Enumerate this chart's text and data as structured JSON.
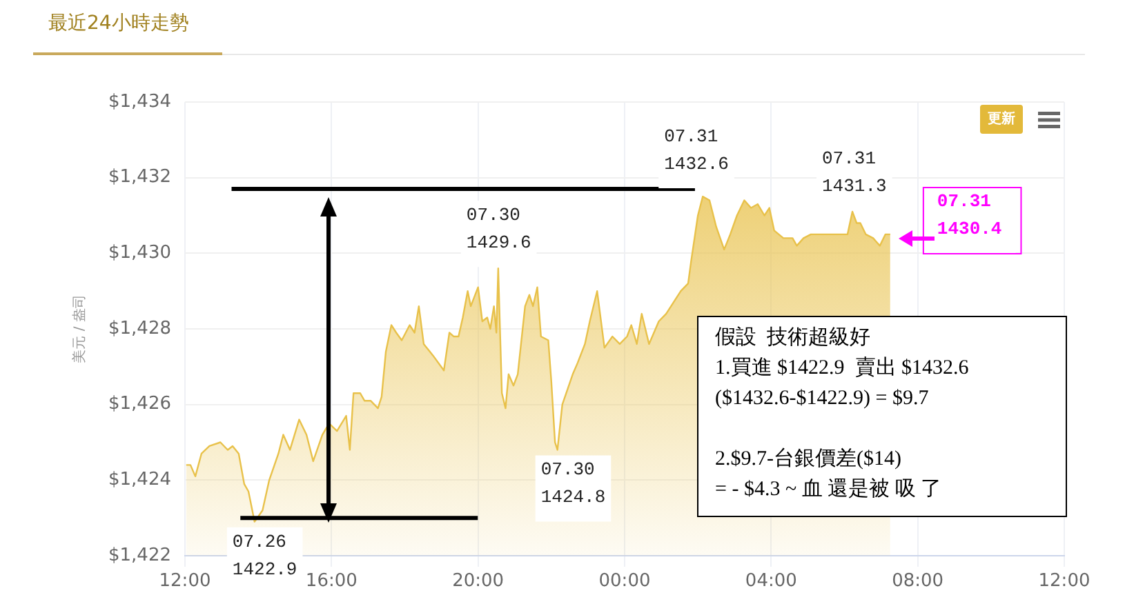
{
  "chart_data": {
    "type": "area",
    "title": "最近24小時走勢",
    "ylabel": "美元 / 盎司",
    "x": [
      "--07-30T12:02",
      "--07-30T12:09",
      "--07-30T12:17",
      "--07-30T12:27",
      "--07-30T12:40",
      "--07-30T12:58",
      "--07-30T13:10",
      "--07-30T13:18",
      "--07-30T13:28",
      "--07-30T13:37",
      "--07-30T13:44",
      "--07-30T13:54",
      "--07-30T14:07",
      "--07-30T14:18",
      "--07-30T14:33",
      "--07-30T14:41",
      "--07-30T14:52",
      "--07-30T15:07",
      "--07-30T15:19",
      "--07-30T15:30",
      "--07-30T15:45",
      "--07-30T15:56",
      "--07-30T16:09",
      "--07-30T16:24",
      "--07-30T16:30",
      "--07-30T16:36",
      "--07-30T16:47",
      "--07-30T16:54",
      "--07-30T17:04",
      "--07-30T17:16",
      "--07-30T17:22",
      "--07-30T17:29",
      "--07-30T17:38",
      "--07-30T17:46",
      "--07-30T17:55",
      "--07-30T18:08",
      "--07-30T18:16",
      "--07-30T18:23",
      "--07-30T18:31",
      "--07-30T18:46",
      "--07-30T19:04",
      "--07-30T19:13",
      "--07-30T19:20",
      "--07-30T19:28",
      "--07-30T19:35",
      "--07-30T19:43",
      "--07-30T19:48",
      "--07-30T20:00",
      "--07-30T20:07",
      "--07-30T20:15",
      "--07-30T20:20",
      "--07-30T20:26",
      "--07-30T20:30",
      "--07-30T20:33",
      "--07-30T20:39",
      "--07-30T20:45",
      "--07-30T20:50",
      "--07-30T20:58",
      "--07-30T21:05",
      "--07-30T21:17",
      "--07-30T21:24",
      "--07-30T21:30",
      "--07-30T21:37",
      "--07-30T21:43",
      "--07-30T21:55",
      "--07-30T22:00",
      "--07-30T22:06",
      "--07-30T22:10",
      "--07-30T22:18",
      "--07-30T22:35",
      "--07-30T22:43",
      "--07-30T22:55",
      "--07-30T23:03",
      "--07-30T23:15",
      "--07-30T23:27",
      "--07-30T23:40",
      "--07-30T23:52",
      "--07-31T00:04",
      "--07-31T00:11",
      "--07-31T00:20",
      "--07-31T00:28",
      "--07-31T00:40",
      "--07-31T00:56",
      "--07-31T01:08",
      "--07-31T01:20",
      "--07-31T01:32",
      "--07-31T01:44",
      "--07-31T01:49",
      "--07-31T02:00",
      "--07-31T02:08",
      "--07-31T02:19",
      "--07-31T02:30",
      "--07-31T02:43",
      "--07-31T02:53",
      "--07-31T03:04",
      "--07-31T03:16",
      "--07-31T03:27",
      "--07-31T03:38",
      "--07-31T03:49",
      "--07-31T03:57",
      "--07-31T04:05",
      "--07-31T04:20",
      "--07-31T04:35",
      "--07-31T04:42",
      "--07-31T04:53",
      "--07-31T05:05",
      "--07-31T06:05",
      "--07-31T06:13",
      "--07-31T06:20",
      "--07-31T06:26",
      "--07-31T06:35",
      "--07-31T06:47",
      "--07-31T06:58",
      "--07-31T07:07",
      "--07-31T07:15"
    ],
    "series": [
      {
        "color": "#e8c14a",
        "values": [
          1424.4,
          1424.4,
          1424.1,
          1424.7,
          1424.9,
          1425.0,
          1424.8,
          1424.9,
          1424.7,
          1423.9,
          1423.7,
          1422.9,
          1423.2,
          1424.0,
          1424.7,
          1425.2,
          1424.8,
          1425.6,
          1425.2,
          1424.5,
          1425.2,
          1425.5,
          1425.3,
          1425.7,
          1424.8,
          1426.3,
          1426.3,
          1426.1,
          1426.1,
          1425.9,
          1426.2,
          1427.4,
          1428.1,
          1427.9,
          1427.7,
          1428.1,
          1427.9,
          1428.6,
          1427.6,
          1427.3,
          1426.9,
          1427.9,
          1427.8,
          1427.8,
          1428.3,
          1429.0,
          1428.6,
          1429.1,
          1428.2,
          1428.3,
          1428.0,
          1428.6,
          1427.9,
          1429.6,
          1426.3,
          1425.9,
          1426.8,
          1426.5,
          1426.8,
          1428.6,
          1428.9,
          1428.6,
          1429.1,
          1427.8,
          1427.7,
          1426.6,
          1425.0,
          1424.8,
          1426.0,
          1426.8,
          1427.1,
          1427.6,
          1428.2,
          1429.0,
          1427.5,
          1427.8,
          1427.6,
          1427.8,
          1428.1,
          1427.6,
          1428.4,
          1427.6,
          1428.2,
          1428.4,
          1428.7,
          1429.0,
          1429.2,
          1429.8,
          1431.0,
          1431.5,
          1431.4,
          1430.7,
          1430.1,
          1430.5,
          1431.0,
          1431.4,
          1431.2,
          1431.3,
          1431.0,
          1431.2,
          1430.6,
          1430.4,
          1430.4,
          1430.2,
          1430.4,
          1430.5,
          1430.5,
          1431.1,
          1430.8,
          1430.8,
          1430.5,
          1430.4,
          1430.2,
          1430.5,
          1430.5
        ]
      }
    ],
    "xlim": [
      "--07-30T12:00",
      "--07-31T12:00"
    ],
    "xticks": [
      {
        "value": "--07-30T12:00",
        "label": "12:00"
      },
      {
        "value": "--07-30T16:00",
        "label": "16:00"
      },
      {
        "value": "--07-30T20:00",
        "label": "20:00"
      },
      {
        "value": "--07-31T00:00",
        "label": "00:00"
      },
      {
        "value": "--07-31T04:00",
        "label": "04:00"
      },
      {
        "value": "--07-31T08:00",
        "label": "08:00"
      },
      {
        "value": "--07-31T12:00",
        "label": "12:00"
      }
    ],
    "ylim": [
      1422,
      1434
    ],
    "yticks": [
      {
        "value": 1422,
        "label": "$1,422"
      },
      {
        "value": 1424,
        "label": "$1,424"
      },
      {
        "value": 1426,
        "label": "$1,426"
      },
      {
        "value": 1428,
        "label": "$1,428"
      },
      {
        "value": 1430,
        "label": "$1,430"
      },
      {
        "value": 1432,
        "label": "$1,432"
      },
      {
        "value": 1434,
        "label": "$1,434"
      }
    ],
    "grid": true,
    "legend": false,
    "marker": "none",
    "ref_lines": [
      {
        "axis": "y",
        "value": 1431.7,
        "color": "#000000"
      },
      {
        "axis": "y",
        "value": 1423.0,
        "color": "#000000"
      }
    ],
    "annotations": [
      {
        "text": "07.26\n1422.9",
        "x": "--07-30T13:54",
        "y": 1422.9
      },
      {
        "text": "07.30\n1429.6",
        "x": "--07-30T20:33",
        "y": 1429.6
      },
      {
        "text": "07.30\n1424.8",
        "x": "--07-30T22:10",
        "y": 1424.8
      },
      {
        "text": "07.31\n1432.6",
        "x": "--07-31T02:08",
        "y": 1431.5
      },
      {
        "text": "07.31\n1431.3",
        "x": "--07-31T06:13",
        "y": 1431.1
      },
      {
        "text": "07.31\n1430.4",
        "x": "--07-31T07:15",
        "y": 1430.5
      },
      "假設  技術超級好\n1.買進 $1422.9  賣出 $1432.6\n($1432.6-$1422.9) = $9.7\n\n2.$9.7-台銀價差($14)\n= - $4.3 ~ 血 還是被 吸 了",
      "更新"
    ]
  }
}
